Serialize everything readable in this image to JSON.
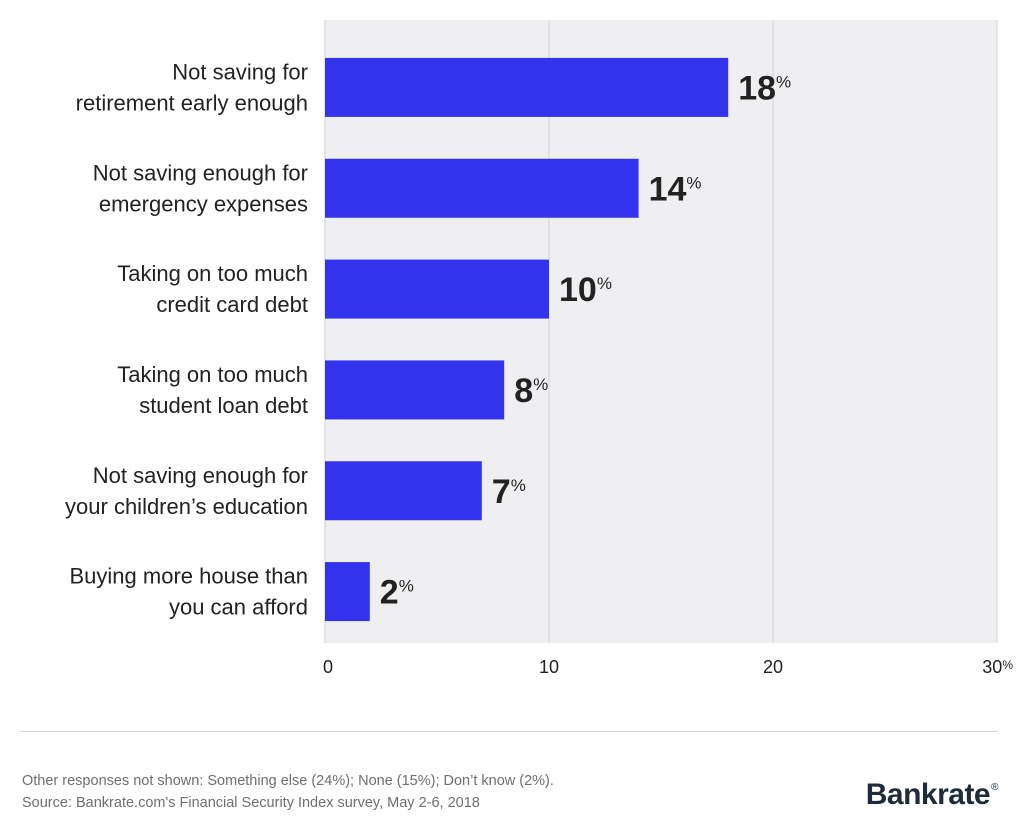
{
  "chart_data": {
    "type": "bar",
    "orientation": "horizontal",
    "categories": [
      [
        "Not saving for",
        "retirement early enough"
      ],
      [
        "Not saving enough for",
        "emergency expenses"
      ],
      [
        "Taking on too much",
        "credit card debt"
      ],
      [
        "Taking on too much",
        "student loan debt"
      ],
      [
        "Not saving enough for",
        "your children’s education"
      ],
      [
        "Buying more house than",
        "you can afford"
      ]
    ],
    "values": [
      18,
      14,
      10,
      8,
      7,
      2
    ],
    "value_suffix": "%",
    "xlim": [
      0,
      30
    ],
    "xticks": [
      "0",
      "10",
      "20",
      "30"
    ],
    "xtick_suffix": "%",
    "grid": true,
    "colors": {
      "bar": "#3333ee",
      "plot_bg": "#efeff2",
      "grid": "#d4d4da"
    }
  },
  "footnote": {
    "line1": "Other responses not shown: Something else (24%); None (15%); Don’t know (2%).",
    "line2": "Source: Bankrate.com's Financial Security Index survey, May 2-6, 2018"
  },
  "brand": {
    "name": "Bankrate",
    "mark": "®"
  }
}
